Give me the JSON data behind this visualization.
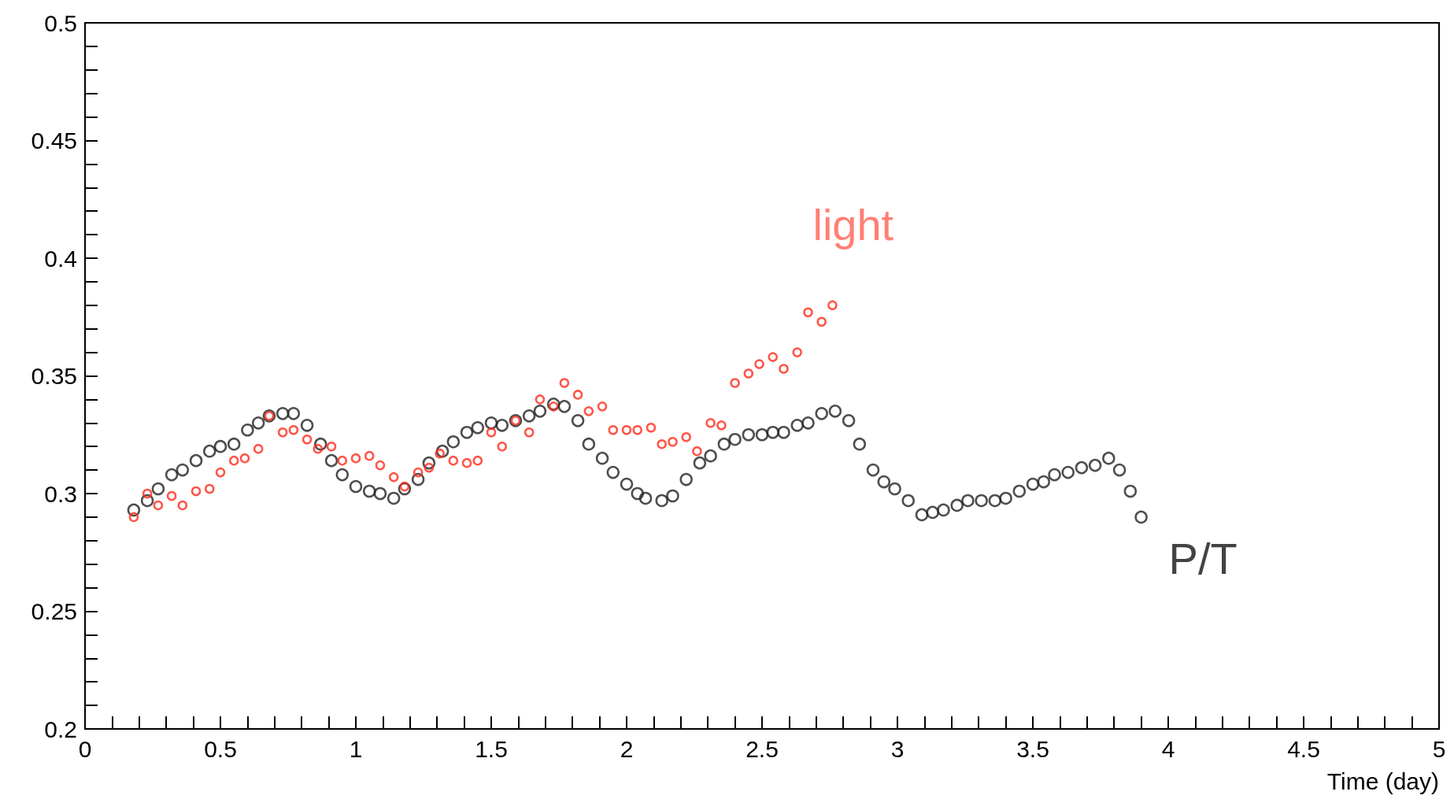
{
  "chart_data": {
    "type": "scatter",
    "xlabel": "Time (day)",
    "marker": "circle",
    "xlim": [
      0,
      5
    ],
    "xticks": [
      0,
      {
        "value": 0.1,
        "label": null
      },
      {
        "value": 0.2,
        "label": null
      },
      {
        "value": 0.3,
        "label": null
      },
      {
        "value": 0.4,
        "label": null
      },
      0.5,
      {
        "value": 0.6,
        "label": null
      },
      {
        "value": 0.7,
        "label": null
      },
      {
        "value": 0.8,
        "label": null
      },
      {
        "value": 0.9,
        "label": null
      },
      1,
      {
        "value": 1.1,
        "label": null
      },
      {
        "value": 1.2,
        "label": null
      },
      {
        "value": 1.3,
        "label": null
      },
      {
        "value": 1.4,
        "label": null
      },
      1.5,
      {
        "value": 1.6,
        "label": null
      },
      {
        "value": 1.7,
        "label": null
      },
      {
        "value": 1.8,
        "label": null
      },
      {
        "value": 1.9,
        "label": null
      },
      2,
      {
        "value": 2.1,
        "label": null
      },
      {
        "value": 2.2,
        "label": null
      },
      {
        "value": 2.3,
        "label": null
      },
      {
        "value": 2.4,
        "label": null
      },
      2.5,
      {
        "value": 2.6,
        "label": null
      },
      {
        "value": 2.7,
        "label": null
      },
      {
        "value": 2.8,
        "label": null
      },
      {
        "value": 2.9,
        "label": null
      },
      3,
      {
        "value": 3.1,
        "label": null
      },
      {
        "value": 3.2,
        "label": null
      },
      {
        "value": 3.3,
        "label": null
      },
      {
        "value": 3.4,
        "label": null
      },
      3.5,
      {
        "value": 3.6,
        "label": null
      },
      {
        "value": 3.7,
        "label": null
      },
      {
        "value": 3.8,
        "label": null
      },
      {
        "value": 3.9,
        "label": null
      },
      4,
      {
        "value": 4.1,
        "label": null
      },
      {
        "value": 4.2,
        "label": null
      },
      {
        "value": 4.3,
        "label": null
      },
      {
        "value": 4.4,
        "label": null
      },
      4.5,
      {
        "value": 4.6,
        "label": null
      },
      {
        "value": 4.7,
        "label": null
      },
      {
        "value": 4.8,
        "label": null
      },
      {
        "value": 4.9,
        "label": null
      },
      5
    ],
    "ylim": [
      0.2,
      0.5
    ],
    "yticks": [
      0.2,
      {
        "value": 0.21,
        "label": null
      },
      {
        "value": 0.22,
        "label": null
      },
      {
        "value": 0.23,
        "label": null
      },
      {
        "value": 0.24,
        "label": null
      },
      0.25,
      {
        "value": 0.26,
        "label": null
      },
      {
        "value": 0.27,
        "label": null
      },
      {
        "value": 0.28,
        "label": null
      },
      {
        "value": 0.29,
        "label": null
      },
      0.3,
      {
        "value": 0.31,
        "label": null
      },
      {
        "value": 0.32,
        "label": null
      },
      {
        "value": 0.33,
        "label": null
      },
      {
        "value": 0.34,
        "label": null
      },
      0.35,
      {
        "value": 0.36,
        "label": null
      },
      {
        "value": 0.37,
        "label": null
      },
      {
        "value": 0.38,
        "label": null
      },
      {
        "value": 0.39,
        "label": null
      },
      0.4,
      {
        "value": 0.41,
        "label": null
      },
      {
        "value": 0.42,
        "label": null
      },
      {
        "value": 0.43,
        "label": null
      },
      {
        "value": 0.44,
        "label": null
      },
      0.45,
      {
        "value": 0.46,
        "label": null
      },
      {
        "value": 0.47,
        "label": null
      },
      {
        "value": 0.48,
        "label": null
      },
      {
        "value": 0.49,
        "label": null
      },
      0.5
    ],
    "series": [
      {
        "name": "P/T",
        "color": "#222222",
        "x": [
          0.18,
          0.23,
          0.27,
          0.32,
          0.36,
          0.41,
          0.46,
          0.5,
          0.55,
          0.6,
          0.64,
          0.68,
          0.73,
          0.77,
          0.82,
          0.87,
          0.91,
          0.95,
          1.0,
          1.05,
          1.09,
          1.14,
          1.18,
          1.23,
          1.27,
          1.32,
          1.36,
          1.41,
          1.45,
          1.5,
          1.54,
          1.59,
          1.64,
          1.68,
          1.73,
          1.77,
          1.82,
          1.86,
          1.91,
          1.95,
          2.0,
          2.04,
          2.07,
          2.13,
          2.17,
          2.22,
          2.27,
          2.31,
          2.36,
          2.4,
          2.45,
          2.5,
          2.54,
          2.58,
          2.63,
          2.67,
          2.72,
          2.77,
          2.82,
          2.86,
          2.91,
          2.95,
          2.99,
          3.04,
          3.09,
          3.13,
          3.17,
          3.22,
          3.26,
          3.31,
          3.36,
          3.4,
          3.45,
          3.5,
          3.54,
          3.58,
          3.63,
          3.68,
          3.73,
          3.78,
          3.82,
          3.86,
          3.9
        ],
        "values": [
          0.293,
          0.297,
          0.302,
          0.308,
          0.31,
          0.314,
          0.318,
          0.32,
          0.321,
          0.327,
          0.33,
          0.333,
          0.334,
          0.334,
          0.329,
          0.321,
          0.314,
          0.308,
          0.303,
          0.301,
          0.3,
          0.298,
          0.302,
          0.306,
          0.313,
          0.318,
          0.322,
          0.326,
          0.328,
          0.33,
          0.329,
          0.331,
          0.333,
          0.335,
          0.338,
          0.337,
          0.331,
          0.321,
          0.315,
          0.309,
          0.304,
          0.3,
          0.298,
          0.297,
          0.299,
          0.306,
          0.313,
          0.316,
          0.321,
          0.323,
          0.325,
          0.325,
          0.326,
          0.326,
          0.329,
          0.33,
          0.334,
          0.335,
          0.331,
          0.321,
          0.31,
          0.305,
          0.302,
          0.297,
          0.291,
          0.292,
          0.293,
          0.295,
          0.297,
          0.297,
          0.297,
          0.298,
          0.301,
          0.304,
          0.305,
          0.308,
          0.309,
          0.311,
          0.312,
          0.315,
          0.31,
          0.301,
          0.29
        ]
      },
      {
        "name": "light",
        "color": "#ff2a1a",
        "x": [
          0.18,
          0.23,
          0.27,
          0.32,
          0.36,
          0.41,
          0.46,
          0.5,
          0.55,
          0.59,
          0.64,
          0.68,
          0.73,
          0.77,
          0.82,
          0.86,
          0.91,
          0.95,
          1.0,
          1.05,
          1.09,
          1.14,
          1.18,
          1.23,
          1.27,
          1.31,
          1.36,
          1.41,
          1.45,
          1.5,
          1.54,
          1.59,
          1.64,
          1.68,
          1.73,
          1.77,
          1.82,
          1.86,
          1.91,
          1.95,
          2.0,
          2.04,
          2.09,
          2.13,
          2.17,
          2.22,
          2.26,
          2.31,
          2.35,
          2.4,
          2.45,
          2.49,
          2.54,
          2.58,
          2.63,
          2.67,
          2.72,
          2.76
        ],
        "values": [
          0.29,
          0.3,
          0.295,
          0.299,
          0.295,
          0.301,
          0.302,
          0.309,
          0.314,
          0.315,
          0.319,
          0.333,
          0.326,
          0.327,
          0.323,
          0.319,
          0.32,
          0.314,
          0.315,
          0.316,
          0.312,
          0.307,
          0.303,
          0.309,
          0.311,
          0.317,
          0.314,
          0.313,
          0.314,
          0.326,
          0.32,
          0.331,
          0.326,
          0.34,
          0.337,
          0.347,
          0.342,
          0.335,
          0.337,
          0.327,
          0.327,
          0.327,
          0.328,
          0.321,
          0.322,
          0.324,
          0.318,
          0.33,
          0.329,
          0.347,
          0.351,
          0.355,
          0.358,
          0.353,
          0.36,
          0.377,
          0.373,
          0.38
        ]
      }
    ]
  }
}
